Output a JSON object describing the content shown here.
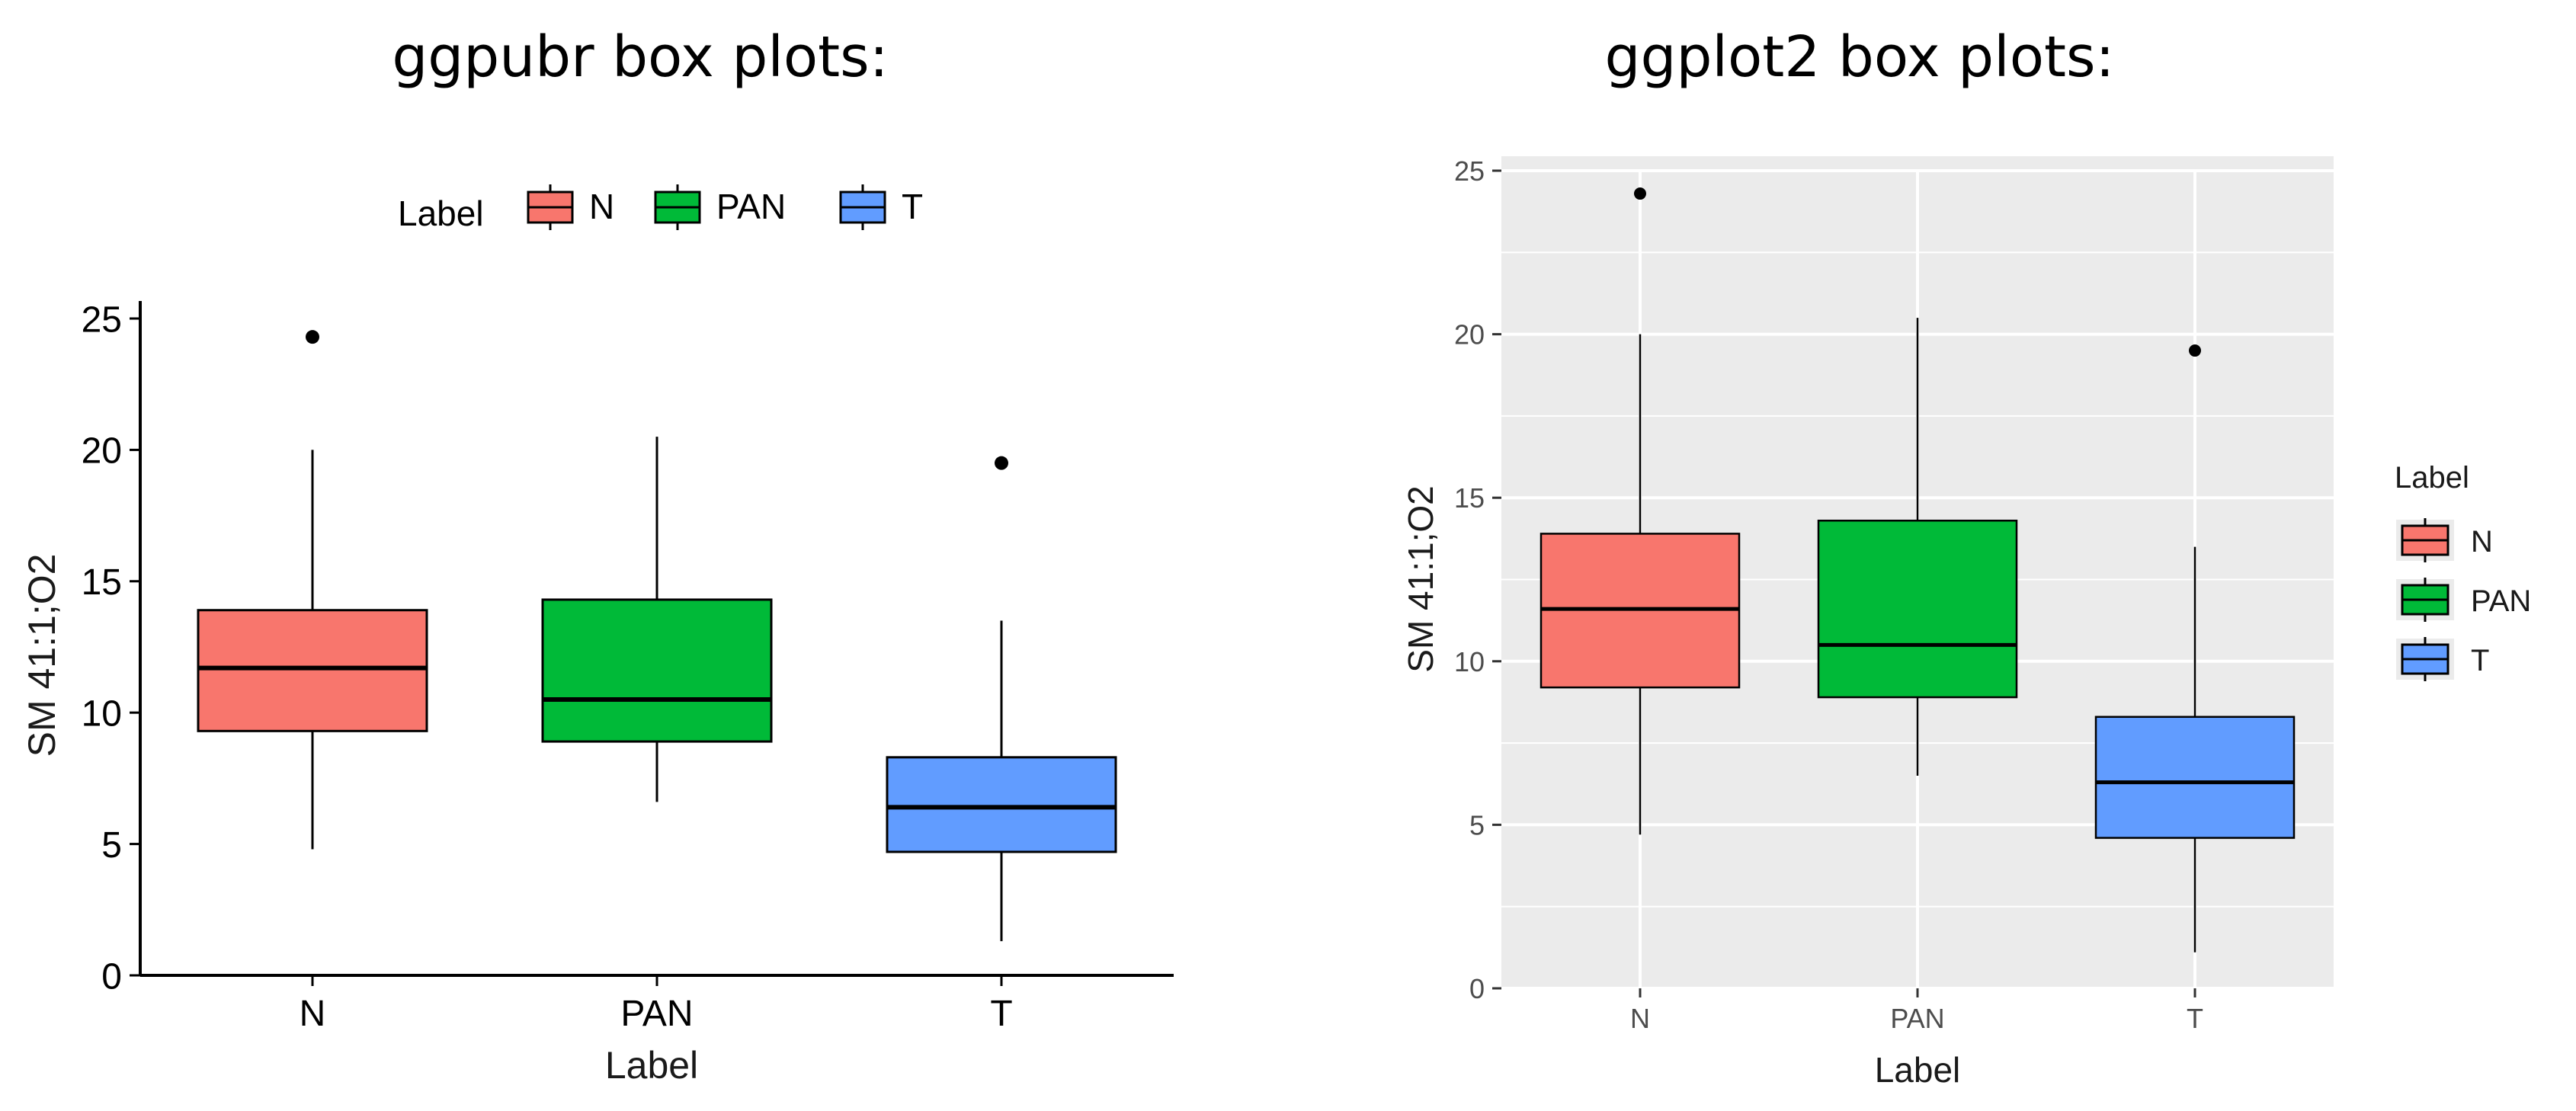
{
  "titles": {
    "left": "ggpubr box plots:",
    "right": "ggplot2 box plots:"
  },
  "colors": {
    "N": "#F8766D",
    "PAN": "#00BA38",
    "T": "#619CFF",
    "panel_bg_right": "#EBEBEB",
    "grid_right": "#FFFFFF"
  },
  "chart_data": [
    {
      "type": "box",
      "style": "ggpubr",
      "title": "ggpubr box plots:",
      "xlabel": "Label",
      "ylabel": "SM 41:1;O2",
      "ylim": [
        0,
        25
      ],
      "yticks": [
        0,
        5,
        10,
        15,
        20,
        25
      ],
      "categories": [
        "N",
        "PAN",
        "T"
      ],
      "legend": {
        "title": "Label",
        "position": "top",
        "entries": [
          "N",
          "PAN",
          "T"
        ]
      },
      "grid": false,
      "boxes": [
        {
          "name": "N",
          "whisker_low": 4.8,
          "q1": 9.3,
          "median": 11.7,
          "q3": 13.9,
          "whisker_high": 20.0,
          "outliers": [
            24.3
          ]
        },
        {
          "name": "PAN",
          "whisker_low": 6.6,
          "q1": 8.9,
          "median": 10.5,
          "q3": 14.3,
          "whisker_high": 20.5,
          "outliers": []
        },
        {
          "name": "T",
          "whisker_low": 1.3,
          "q1": 4.7,
          "median": 6.4,
          "q3": 8.3,
          "whisker_high": 13.5,
          "outliers": [
            19.5
          ]
        }
      ]
    },
    {
      "type": "box",
      "style": "ggplot2",
      "title": "ggplot2 box plots:",
      "xlabel": "Label",
      "ylabel": "SM 41:1;O2",
      "ylim": [
        0,
        25
      ],
      "yticks": [
        0,
        5,
        10,
        15,
        20,
        25
      ],
      "categories": [
        "N",
        "PAN",
        "T"
      ],
      "legend": {
        "title": "Label",
        "position": "right",
        "entries": [
          "N",
          "PAN",
          "T"
        ]
      },
      "grid": true,
      "boxes": [
        {
          "name": "N",
          "whisker_low": 4.7,
          "q1": 9.2,
          "median": 11.6,
          "q3": 13.9,
          "whisker_high": 20.0,
          "outliers": [
            24.3
          ]
        },
        {
          "name": "PAN",
          "whisker_low": 6.5,
          "q1": 8.9,
          "median": 10.5,
          "q3": 14.3,
          "whisker_high": 20.5,
          "outliers": []
        },
        {
          "name": "T",
          "whisker_low": 1.1,
          "q1": 4.6,
          "median": 6.3,
          "q3": 8.3,
          "whisker_high": 13.5,
          "outliers": [
            19.5
          ]
        }
      ]
    }
  ]
}
